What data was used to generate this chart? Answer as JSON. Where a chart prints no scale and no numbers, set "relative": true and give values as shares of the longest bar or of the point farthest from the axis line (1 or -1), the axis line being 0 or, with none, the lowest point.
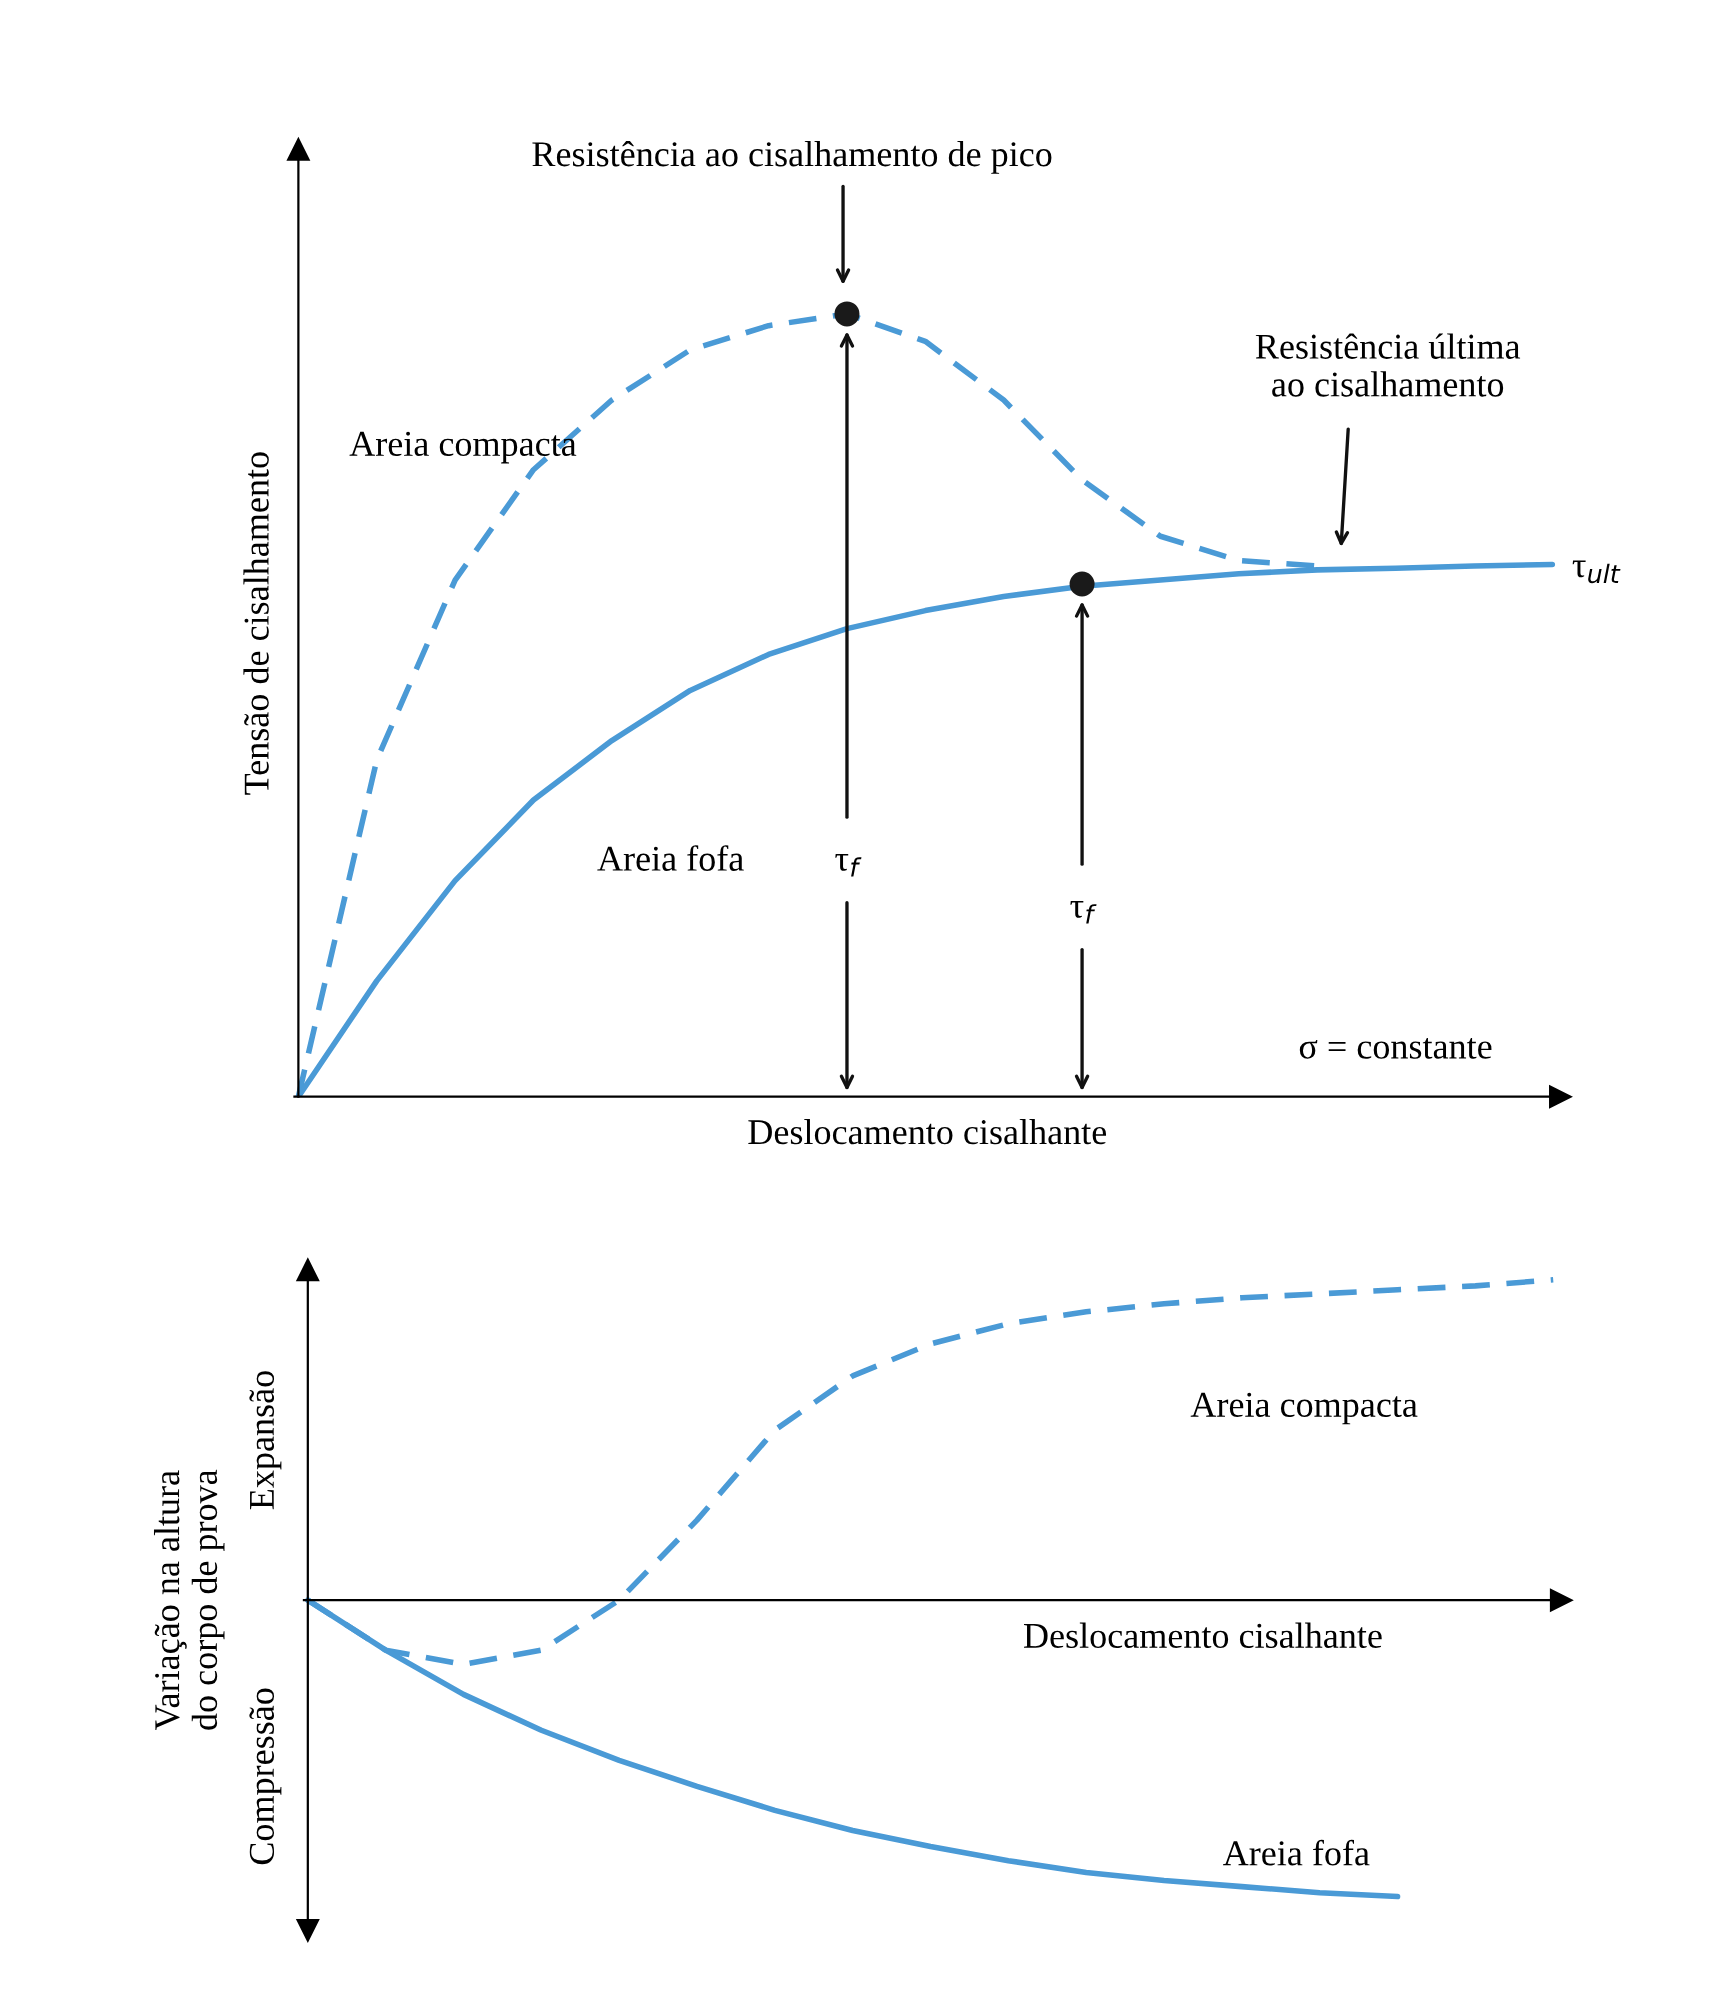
{
  "chart_data": [
    {
      "type": "line",
      "relative": true,
      "tick_labels": false,
      "ylabel": "Tensão de cisalhamento",
      "xlabel": "Deslocamento cisalhante",
      "categories": [
        null,
        null,
        null,
        null,
        null,
        null,
        null,
        null,
        null,
        null,
        null,
        null,
        null,
        null,
        null,
        null,
        null
      ],
      "series": [
        {
          "name": "Areia compacta",
          "color": "#4a9ad6",
          "line_style": "dashed",
          "values": [
            0,
            0.43,
            0.66,
            0.801,
            0.89,
            0.954,
            0.985,
            1.0,
            0.965,
            0.89,
            0.788,
            0.716,
            0.685,
            0.678,
            null,
            null,
            null
          ]
        },
        {
          "name": "Areia fofa",
          "color": "#4a9ad6",
          "line_style": "solid",
          "values": [
            0,
            0.148,
            0.276,
            0.379,
            0.455,
            0.519,
            0.565,
            0.598,
            0.621,
            0.639,
            0.652,
            0.66,
            0.668,
            0.673,
            0.675,
            0.678,
            0.68
          ]
        }
      ],
      "annotations": [
        "Resistência ao cisalhamento de pico",
        "Resistência última\nao cisalhamento",
        "τ$_{ult}$",
        "τ$_{f}$",
        "τ$_{f}$",
        "σ = constante"
      ]
    },
    {
      "type": "line",
      "relative": true,
      "tick_labels": false,
      "ylabel": "Variação na altura\ndo corpo de prova",
      "xlabel": "Deslocamento cisalhante",
      "categories": [
        null,
        null,
        null,
        null,
        null,
        null,
        null,
        null,
        null,
        null,
        null,
        null,
        null,
        null,
        null,
        null,
        null
      ],
      "series": [
        {
          "name": "Areia compacta",
          "color": "#4a9ad6",
          "line_style": "dashed",
          "values": [
            0,
            -0.156,
            -0.2,
            -0.156,
            0,
            0.25,
            0.531,
            0.7,
            0.8,
            0.863,
            0.9,
            0.925,
            0.944,
            0.956,
            0.969,
            0.981,
            1.0
          ]
        },
        {
          "name": "Areia fofa",
          "color": "#4a9ad6",
          "line_style": "solid",
          "values": [
            0,
            -0.156,
            -0.294,
            -0.406,
            -0.5,
            -0.581,
            -0.656,
            -0.719,
            -0.769,
            -0.813,
            -0.85,
            -0.875,
            -0.894,
            -0.913,
            -0.925,
            null,
            null
          ]
        }
      ],
      "annotations": [
        "Expansão",
        "Compressão"
      ]
    }
  ]
}
